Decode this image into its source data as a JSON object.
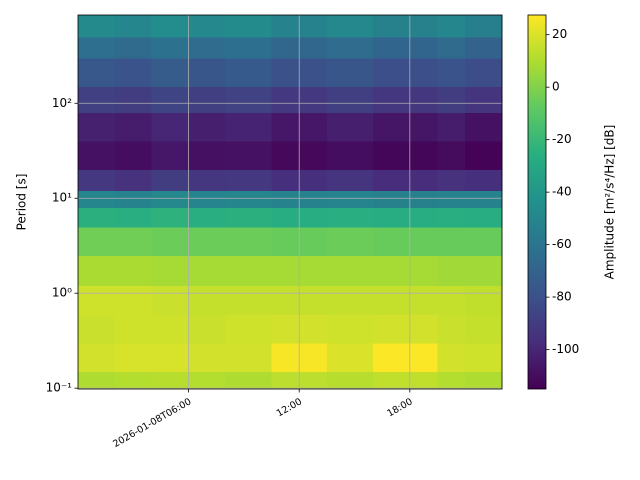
{
  "chart_data": {
    "type": "heatmap",
    "ylabel": "Period [s]",
    "yscale": "log",
    "ylim": [
      0.098,
      850
    ],
    "yticks": [
      {
        "value": 0.1,
        "label": "10⁻¹"
      },
      {
        "value": 1,
        "label": "10⁰"
      },
      {
        "value": 10,
        "label": "10¹"
      },
      {
        "value": 100,
        "label": "10²"
      }
    ],
    "xlim": [
      0,
      23
    ],
    "xticks": [
      {
        "value": 6,
        "label": "2026-01-08T06:00"
      },
      {
        "value": 12,
        "label": "12:00"
      },
      {
        "value": 18,
        "label": "18:00"
      }
    ],
    "grid": true,
    "x_edges": [
      0,
      2,
      4,
      6,
      8,
      10.5,
      13.5,
      16,
      19.5,
      21,
      23
    ],
    "y_edges": [
      0.098,
      0.15,
      0.3,
      0.6,
      1.2,
      2.5,
      5,
      8,
      12,
      20,
      40,
      80,
      150,
      300,
      500,
      850
    ],
    "z": [
      [
        10,
        11,
        12,
        11,
        10,
        13,
        12,
        14,
        11,
        10
      ],
      [
        18,
        19,
        19,
        18,
        18,
        26,
        20,
        27,
        18,
        17
      ],
      [
        16,
        17,
        17,
        16,
        17,
        18,
        17,
        18,
        16,
        15
      ],
      [
        17,
        17,
        16,
        15,
        15,
        15,
        15,
        15,
        15,
        14
      ],
      [
        9,
        9,
        8,
        8,
        8,
        8,
        8,
        8,
        7,
        7
      ],
      [
        -4,
        -4,
        -5,
        -5,
        -5,
        -6,
        -5,
        -6,
        -6,
        -6
      ],
      [
        -25,
        -26,
        -24,
        -26,
        -25,
        -27,
        -26,
        -27,
        -26,
        -27
      ],
      [
        -50,
        -52,
        -49,
        -51,
        -50,
        -52,
        -51,
        -53,
        -52,
        -52
      ],
      [
        -92,
        -95,
        -90,
        -93,
        -92,
        -96,
        -94,
        -97,
        -95,
        -96
      ],
      [
        -108,
        -110,
        -106,
        -109,
        -108,
        -112,
        -110,
        -113,
        -111,
        -114
      ],
      [
        -102,
        -104,
        -100,
        -103,
        -101,
        -106,
        -103,
        -107,
        -104,
        -108
      ],
      [
        -88,
        -90,
        -86,
        -89,
        -87,
        -92,
        -89,
        -93,
        -90,
        -94
      ],
      [
        -76,
        -78,
        -74,
        -77,
        -75,
        -80,
        -77,
        -81,
        -78,
        -82
      ],
      [
        -64,
        -66,
        -62,
        -65,
        -63,
        -68,
        -65,
        -69,
        -66,
        -70
      ],
      [
        -48,
        -50,
        -46,
        -49,
        -47,
        -52,
        -49,
        -53,
        -50,
        -54
      ]
    ],
    "colormap": [
      "#440154",
      "#472d7b",
      "#3b528b",
      "#2c728e",
      "#21918c",
      "#28ae80",
      "#5ec962",
      "#addc30",
      "#fde725"
    ],
    "clim": [
      -115,
      27.5
    ],
    "cticks": [
      -100,
      -80,
      -60,
      -40,
      -20,
      0,
      20
    ],
    "colorbar_label": "Amplitude [m²/s⁴/Hz] [dB]"
  }
}
